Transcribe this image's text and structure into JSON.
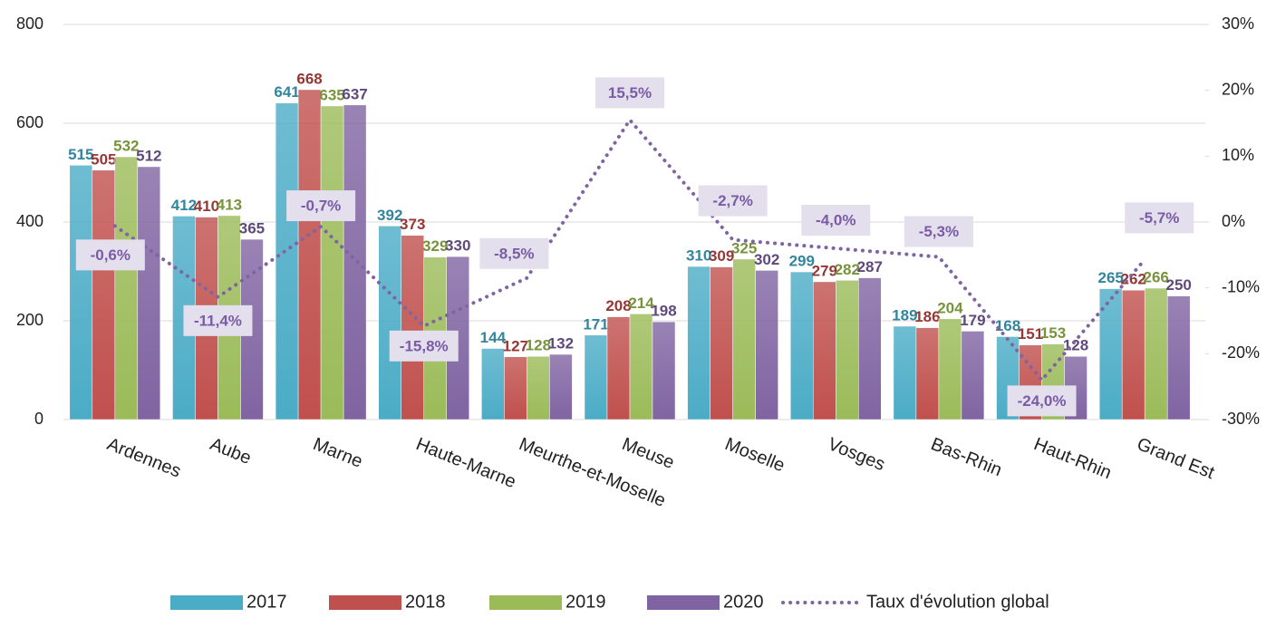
{
  "chart_data": {
    "type": "bar",
    "categories": [
      "Ardennes",
      "Aube",
      "Marne",
      "Haute-Marne",
      "Meurthe-et-Moselle",
      "Meuse",
      "Moselle",
      "Vosges",
      "Bas-Rhin",
      "Haut-Rhin",
      "Grand Est"
    ],
    "series": [
      {
        "name": "2017",
        "type": "bar",
        "color": "#4bacc6",
        "label_color": "#31859c",
        "values": [
          515,
          412,
          641,
          392,
          144,
          171,
          310,
          299,
          189,
          168,
          265
        ]
      },
      {
        "name": "2018",
        "type": "bar",
        "color": "#c0504d",
        "label_color": "#953735",
        "values": [
          505,
          410,
          668,
          373,
          127,
          208,
          309,
          279,
          186,
          151,
          262
        ]
      },
      {
        "name": "2019",
        "type": "bar",
        "color": "#9bbb59",
        "label_color": "#77933c",
        "values": [
          532,
          413,
          635,
          329,
          128,
          214,
          325,
          282,
          204,
          153,
          266
        ]
      },
      {
        "name": "2020",
        "type": "bar",
        "color": "#8064a2",
        "label_color": "#5f497a",
        "values": [
          512,
          365,
          637,
          330,
          132,
          198,
          302,
          287,
          179,
          128,
          250
        ]
      },
      {
        "name": "Taux d'évolution global",
        "type": "line",
        "axis": "y2",
        "color": "#8064a2",
        "label_fill": "#e4dfec",
        "values": [
          -0.6,
          -11.4,
          -0.7,
          -15.8,
          -8.5,
          15.5,
          -2.7,
          -4.0,
          -5.3,
          -24.0,
          -5.7
        ],
        "value_labels": [
          "-0,6%",
          "-11,4%",
          "-0,7%",
          "-15,8%",
          "-8,5%",
          "15,5%",
          "-2,7%",
          "-4,0%",
          "-5,3%",
          "-24,0%",
          "-5,7%"
        ]
      }
    ],
    "ylim": [
      0,
      800
    ],
    "yticks": [
      0,
      200,
      400,
      600,
      800
    ],
    "y2lim": [
      -30,
      30
    ],
    "y2ticks": [
      {
        "value": -30,
        "label": "-30%"
      },
      {
        "value": -20,
        "label": "-20%"
      },
      {
        "value": -10,
        "label": "-10%"
      },
      {
        "value": 0,
        "label": "0%"
      },
      {
        "value": 10,
        "label": "10%"
      },
      {
        "value": 20,
        "label": "20%"
      },
      {
        "value": 30,
        "label": "30%"
      }
    ],
    "grid": true,
    "legend": "bottom"
  }
}
